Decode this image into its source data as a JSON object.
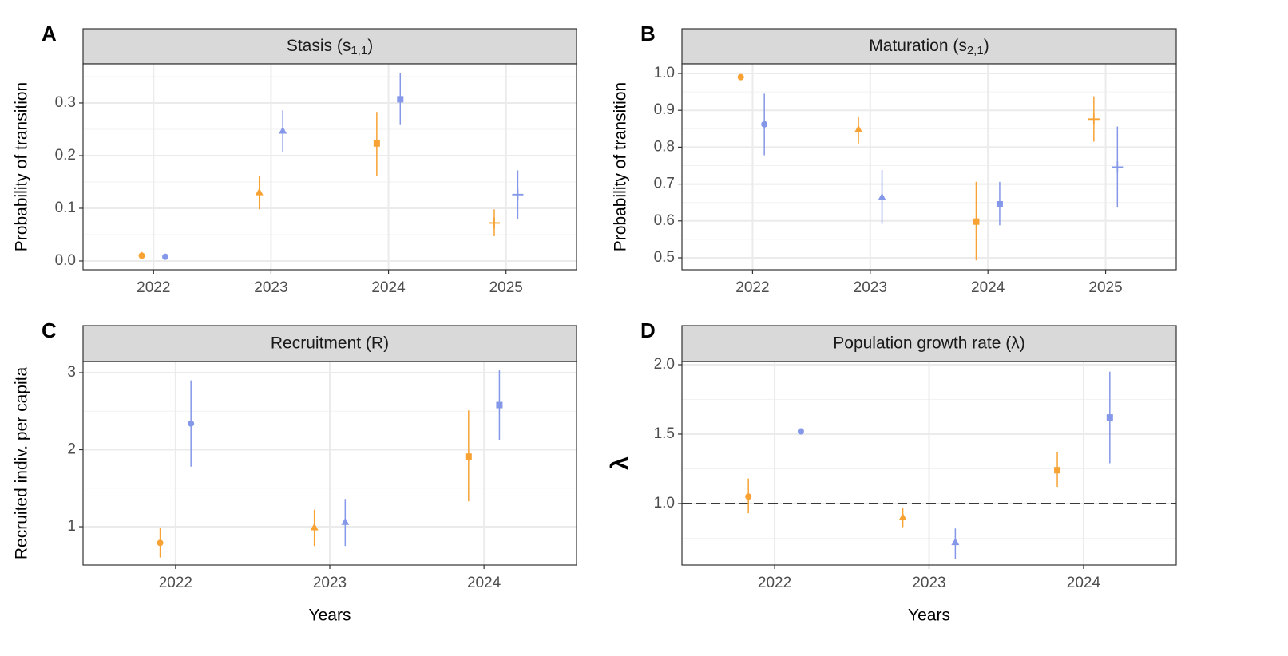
{
  "chart_data": [
    {
      "type": "scatter",
      "label": "A",
      "title": "Stasis (s",
      "title_subscript": "1,1",
      "title_suffix": ")",
      "ylabel": "Probability of transition",
      "categories": [
        "2022",
        "2023",
        "2024",
        "2025"
      ],
      "shapes": [
        "circle",
        "triangle",
        "square",
        "plus"
      ],
      "dodge": 0.1,
      "ylim": [
        -0.0167,
        0.3742
      ],
      "yticks": [
        {
          "value": 0,
          "label": "0.0"
        },
        0.1,
        0.2,
        0.3
      ],
      "grid": true,
      "series": [
        {
          "color": "#f7a233",
          "values": [
            0.01,
            0.13,
            0.223,
            0.072
          ],
          "lower": [
            0.003,
            0.098,
            0.162,
            0.047
          ],
          "upper": [
            0.017,
            0.162,
            0.283,
            0.098
          ]
        },
        {
          "color": "#8497e8",
          "values": [
            0.008,
            0.247,
            0.307,
            0.126
          ],
          "lower": [
            0.006,
            0.206,
            0.258,
            0.08
          ],
          "upper": [
            0.01,
            0.286,
            0.356,
            0.172
          ]
        }
      ]
    },
    {
      "type": "scatter",
      "label": "B",
      "title": "Maturation (s",
      "title_subscript": "2,1",
      "title_suffix": ")",
      "ylabel": "Probability of transition",
      "categories": [
        "2022",
        "2023",
        "2024",
        "2025"
      ],
      "shapes": [
        "circle",
        "triangle",
        "square",
        "plus"
      ],
      "dodge": 0.1,
      "ylim": [
        0.4675,
        1.026
      ],
      "yticks": [
        0.5,
        0.6,
        0.7,
        0.8,
        0.9,
        {
          "value": 1,
          "label": "1.0"
        }
      ],
      "grid": true,
      "series": [
        {
          "color": "#f7a233",
          "values": [
            0.99,
            0.848,
            0.598,
            0.876
          ],
          "lower": [
            0.985,
            0.81,
            0.493,
            0.815
          ],
          "upper": [
            0.995,
            0.883,
            0.706,
            0.938
          ]
        },
        {
          "color": "#8497e8",
          "values": [
            0.862,
            0.664,
            0.645,
            0.746
          ],
          "lower": [
            0.778,
            0.592,
            0.588,
            0.636
          ],
          "upper": [
            0.945,
            0.738,
            0.706,
            0.856
          ]
        }
      ]
    },
    {
      "type": "scatter",
      "label": "C",
      "title": "Recruitment (R)",
      "ylabel": "Recruited indiv. per capita",
      "xlabel": "Years",
      "categories": [
        "2022",
        "2023",
        "2024"
      ],
      "shapes": [
        "circle",
        "triangle",
        "square"
      ],
      "dodge": 0.1,
      "ylim": [
        0.503,
        3.145
      ],
      "yticks": [
        1,
        2,
        3
      ],
      "grid": true,
      "series": [
        {
          "color": "#f7a233",
          "values": [
            0.79,
            0.99,
            1.91
          ],
          "lower": [
            0.6,
            0.75,
            1.33
          ],
          "upper": [
            0.98,
            1.22,
            2.51
          ]
        },
        {
          "color": "#8497e8",
          "values": [
            2.34,
            1.06,
            2.58
          ],
          "lower": [
            1.78,
            0.75,
            2.13
          ],
          "upper": [
            2.9,
            1.36,
            3.03
          ]
        }
      ]
    },
    {
      "type": "scatter",
      "label": "D",
      "title": "Population growth rate (λ)",
      "ylabel": "λ",
      "xlabel": "Years",
      "categories": [
        "2022",
        "2023",
        "2024"
      ],
      "shapes": [
        "circle",
        "triangle",
        "square"
      ],
      "dodge": 0.17,
      "ylim": [
        0.557,
        2.023
      ],
      "yticks": [
        {
          "value": 1,
          "label": "1.0"
        },
        1.5,
        {
          "value": 2,
          "label": "2.0"
        }
      ],
      "grid": true,
      "hline": 1,
      "series": [
        {
          "color": "#f7a233",
          "values": [
            1.05,
            0.9,
            1.24
          ],
          "lower": [
            0.93,
            0.83,
            1.12
          ],
          "upper": [
            1.18,
            0.97,
            1.37
          ]
        },
        {
          "color": "#8497e8",
          "values": [
            1.52,
            0.72,
            1.62
          ],
          "lower": [
            1.5,
            0.6,
            1.29
          ],
          "upper": [
            1.54,
            0.82,
            1.95
          ]
        }
      ]
    }
  ]
}
